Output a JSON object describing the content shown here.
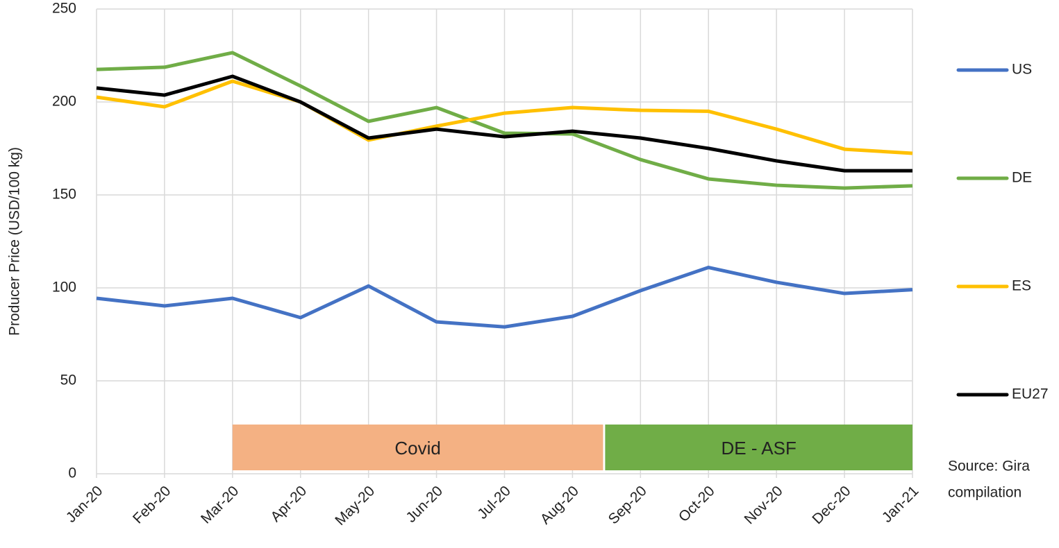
{
  "chart_data": {
    "type": "line",
    "y_label": "Producer Price (USD/100 kg)",
    "categories": [
      "Jan-20",
      "Feb-20",
      "Mar-20",
      "Apr-20",
      "May-20",
      "Jun-20",
      "Jul-20",
      "Aug-20",
      "Sep-20",
      "Oct-20",
      "Nov-20",
      "Dec-20",
      "Jan-21"
    ],
    "series": [
      {
        "name": "US",
        "color": "#4472c4",
        "values": [
          94.4,
          90.3,
          94.4,
          84,
          101,
          81.7,
          79,
          84.7,
          98.5,
          111,
          103,
          97,
          99
        ]
      },
      {
        "name": "DE",
        "color": "#70ad47",
        "values": [
          217.5,
          218.7,
          226.5,
          208.6,
          189.6,
          197,
          183.2,
          182.8,
          169,
          158.6,
          155.2,
          153.7,
          154.9
        ]
      },
      {
        "name": "ES",
        "color": "#ffc000",
        "values": [
          202.6,
          197.4,
          211.2,
          200,
          179.5,
          187,
          194,
          197,
          195.5,
          195,
          185.4,
          174.6,
          172.4
        ]
      },
      {
        "name": "EU27",
        "color": "#000000",
        "values": [
          207.5,
          203.7,
          213.8,
          200,
          180.6,
          185.4,
          181.3,
          184.3,
          180.6,
          175,
          168.3,
          163,
          163
        ]
      }
    ],
    "ylim": [
      0,
      250
    ],
    "yticks": [
      0,
      50,
      100,
      150,
      200,
      250
    ],
    "grid": true,
    "legend": "right",
    "annotations": [
      {
        "text": "Covid",
        "color": "#f4b183"
      },
      {
        "text": "DE - ASF",
        "color": "#70ad47"
      }
    ],
    "source": [
      "Source: Gira",
      "compilation"
    ]
  }
}
